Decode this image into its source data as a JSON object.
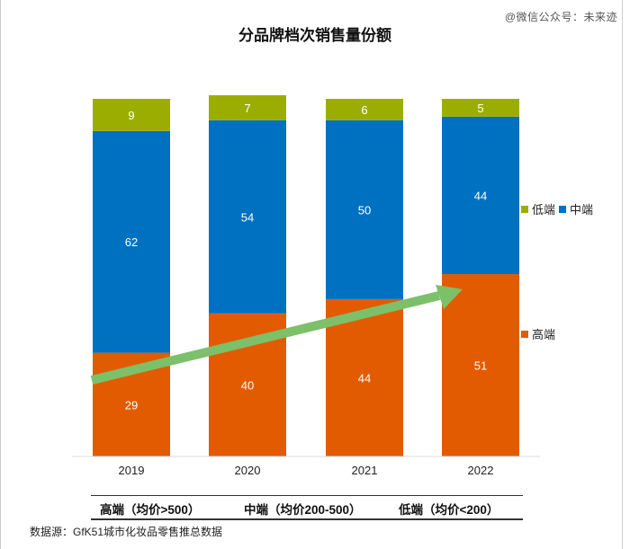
{
  "watermark": "@微信公众号：未来迹",
  "notes": {
    "high": "高端（均价>500）",
    "mid": "中端（均价200-500）",
    "low": "低端（均价<200）"
  },
  "source": "数据源：GfK51城市化妆品零售推总数据",
  "chart_data": {
    "type": "bar",
    "stacked": true,
    "title": "分品牌档次销售量份额",
    "categories": [
      "2019",
      "2020",
      "2021",
      "2022"
    ],
    "series": [
      {
        "name": "高端",
        "color": "#E35B00",
        "values": [
          29,
          40,
          44,
          51
        ]
      },
      {
        "name": "中端",
        "color": "#0070C0",
        "values": [
          62,
          54,
          50,
          44
        ]
      },
      {
        "name": "低端",
        "color": "#9BAE00",
        "values": [
          9,
          7,
          6,
          5
        ]
      }
    ],
    "ylim": [
      0,
      100
    ],
    "xlabel": "",
    "ylabel": "",
    "legend": "right",
    "grid": false,
    "annotations": [
      "upward trend arrow over 高端 bars"
    ],
    "arrow_color": "#7CC06A"
  }
}
